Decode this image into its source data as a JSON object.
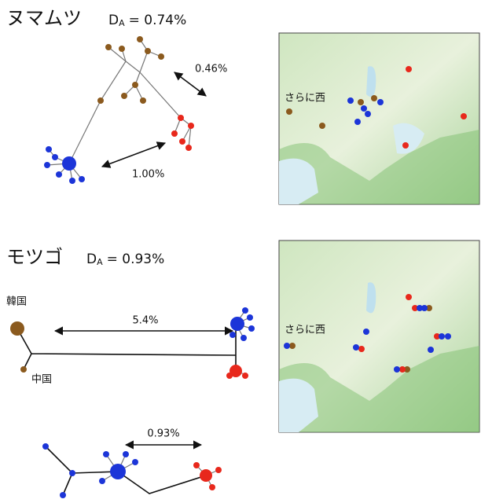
{
  "panels": [
    {
      "title": "ヌマムツ",
      "d_letter": "D",
      "d_sub": "A",
      "d_value": "= 0.74%",
      "distances": [
        "0.46%",
        "1.00%"
      ],
      "map_label": "さらに西"
    },
    {
      "title": "モツゴ",
      "d_letter": "D",
      "d_sub": "A",
      "d_value": "= 0.93%",
      "distances": [
        "5.4%",
        "0.93%"
      ],
      "map_label": "さらに西",
      "regions": [
        "韓国",
        "中国"
      ]
    }
  ]
}
